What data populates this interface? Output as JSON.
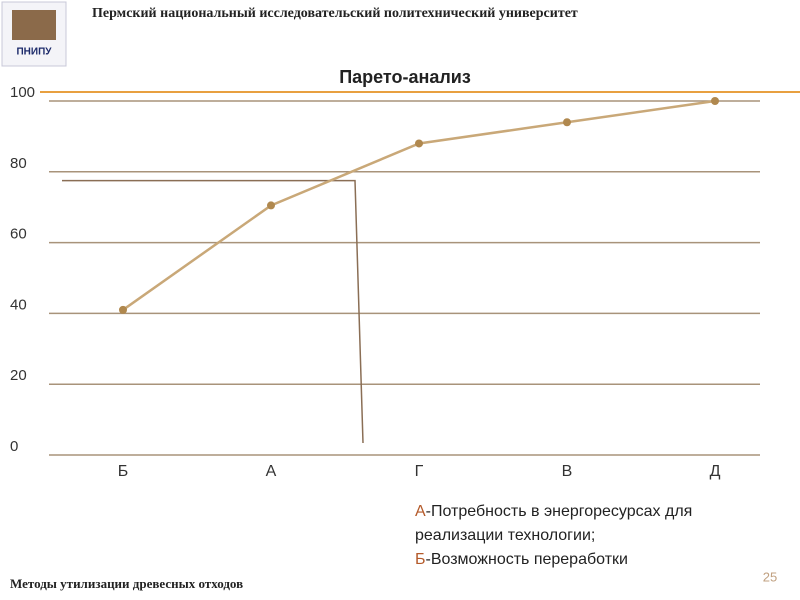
{
  "header": {
    "university": "Пермский национальный исследовательский политехнический университет",
    "logo": "ПНИПУ"
  },
  "chart_data": {
    "type": "line",
    "title": "Парето-анализ",
    "categories": [
      "Б",
      "А",
      "Г",
      "В",
      "Д"
    ],
    "series": [
      {
        "color": "#c9a878",
        "marker_color": "#b0884e",
        "values": [
          41,
          70.5,
          88,
          94,
          100
        ]
      }
    ],
    "threshold": 77.5,
    "threshold_color": "#8a6e55",
    "ylim": [
      0,
      100
    ],
    "yticks": [
      0,
      20,
      40,
      60,
      80,
      100
    ],
    "grid": true,
    "grid_color": "#a8937a"
  },
  "legend": [
    {
      "key": "А",
      "text": "-Потребность в энергоресурсах для реализации технологии;"
    },
    {
      "key": "Б",
      "text": "-Возможность переработки"
    }
  ],
  "footer": {
    "topic": "Методы утилизации древесных отходов",
    "page": "25"
  }
}
